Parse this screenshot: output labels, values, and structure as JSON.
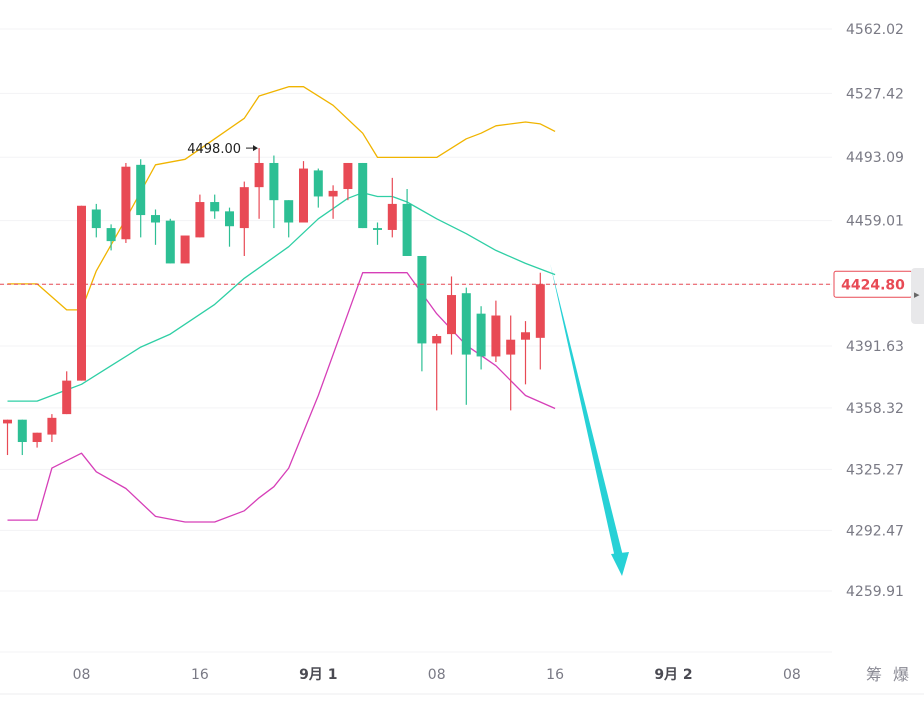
{
  "chart_data": {
    "type": "candlestick",
    "y_axis": {
      "ticks": [
        "4562.02",
        "4527.42",
        "4493.09",
        "4459.01",
        "4424.80",
        "4391.63",
        "4358.32",
        "4325.27",
        "4292.47",
        "4259.91"
      ],
      "ylim": [
        4240,
        4580
      ],
      "position": "right"
    },
    "x_axis": {
      "ticks": [
        {
          "label": "08",
          "bar": 5
        },
        {
          "label": "16",
          "bar": 13
        },
        {
          "label": "9月 1",
          "bar": 21,
          "bold": true
        },
        {
          "label": "08",
          "bar": 29
        },
        {
          "label": "16",
          "bar": 37
        },
        {
          "label": "9月 2",
          "bar": 45,
          "bold": true
        },
        {
          "label": "08",
          "bar": 53
        }
      ],
      "extra_labels": [
        "筹",
        "爆"
      ]
    },
    "current_price": {
      "value": 4424.8,
      "label": "4424.80",
      "color": "#e84a55"
    },
    "annotation": {
      "text": "4498.00",
      "value": 4498.0
    },
    "colors": {
      "up": "#e84a55",
      "down": "#2dbf94",
      "upper_band": "#f0b400",
      "middle_band": "#2fcfa5",
      "lower_band": "#d63fb8",
      "arrow": "#27d1d6"
    },
    "candles": [
      {
        "o": 4350,
        "h": 4352,
        "l": 4333,
        "c": 4352
      },
      {
        "o": 4352,
        "h": 4352,
        "l": 4333,
        "c": 4340
      },
      {
        "o": 4340,
        "h": 4345,
        "l": 4337,
        "c": 4345
      },
      {
        "o": 4344,
        "h": 4355,
        "l": 4340,
        "c": 4353
      },
      {
        "o": 4355,
        "h": 4378,
        "l": 4355,
        "c": 4373
      },
      {
        "o": 4373,
        "h": 4467,
        "l": 4373,
        "c": 4467
      },
      {
        "o": 4465,
        "h": 4468,
        "l": 4450,
        "c": 4455
      },
      {
        "o": 4455,
        "h": 4457,
        "l": 4443,
        "c": 4448
      },
      {
        "o": 4449,
        "h": 4490,
        "l": 4447,
        "c": 4488
      },
      {
        "o": 4489,
        "h": 4492,
        "l": 4450,
        "c": 4462
      },
      {
        "o": 4462,
        "h": 4465,
        "l": 4446,
        "c": 4458
      },
      {
        "o": 4459,
        "h": 4460,
        "l": 4436,
        "c": 4436
      },
      {
        "o": 4436,
        "h": 4451,
        "l": 4436,
        "c": 4451
      },
      {
        "o": 4450,
        "h": 4473,
        "l": 4450,
        "c": 4469
      },
      {
        "o": 4469,
        "h": 4473,
        "l": 4460,
        "c": 4464
      },
      {
        "o": 4464,
        "h": 4466,
        "l": 4445,
        "c": 4456
      },
      {
        "o": 4455,
        "h": 4480,
        "l": 4440,
        "c": 4477
      },
      {
        "o": 4477,
        "h": 4498,
        "l": 4460,
        "c": 4490
      },
      {
        "o": 4490,
        "h": 4494,
        "l": 4455,
        "c": 4470
      },
      {
        "o": 4470,
        "h": 4470,
        "l": 4450,
        "c": 4458
      },
      {
        "o": 4458,
        "h": 4491,
        "l": 4458,
        "c": 4487
      },
      {
        "o": 4486,
        "h": 4487,
        "l": 4466,
        "c": 4472
      },
      {
        "o": 4472,
        "h": 4478,
        "l": 4460,
        "c": 4475
      },
      {
        "o": 4476,
        "h": 4490,
        "l": 4470,
        "c": 4490
      },
      {
        "o": 4490,
        "h": 4490,
        "l": 4455,
        "c": 4455
      },
      {
        "o": 4455,
        "h": 4458,
        "l": 4446,
        "c": 4454
      },
      {
        "o": 4454,
        "h": 4482,
        "l": 4450,
        "c": 4468
      },
      {
        "o": 4468,
        "h": 4476,
        "l": 4440,
        "c": 4440
      },
      {
        "o": 4440,
        "h": 4440,
        "l": 4378,
        "c": 4393
      },
      {
        "o": 4393,
        "h": 4398,
        "l": 4357,
        "c": 4397
      },
      {
        "o": 4398,
        "h": 4429,
        "l": 4387,
        "c": 4419
      },
      {
        "o": 4420,
        "h": 4423,
        "l": 4360,
        "c": 4387
      },
      {
        "o": 4409,
        "h": 4413,
        "l": 4379,
        "c": 4386
      },
      {
        "o": 4386,
        "h": 4416,
        "l": 4383,
        "c": 4408
      },
      {
        "o": 4387,
        "h": 4408,
        "l": 4357,
        "c": 4395
      },
      {
        "o": 4395,
        "h": 4405,
        "l": 4371,
        "c": 4399
      },
      {
        "o": 4396,
        "h": 4431,
        "l": 4379,
        "c": 4424.8
      }
    ],
    "bollinger": {
      "upper": [
        [
          0,
          4425
        ],
        [
          1,
          4425
        ],
        [
          2,
          4425
        ],
        [
          4,
          4411
        ],
        [
          5,
          4411
        ],
        [
          6,
          4432
        ],
        [
          8,
          4460
        ],
        [
          10,
          4489
        ],
        [
          12,
          4492
        ],
        [
          14,
          4503
        ],
        [
          16,
          4514
        ],
        [
          17,
          4526
        ],
        [
          19,
          4531
        ],
        [
          20,
          4531
        ],
        [
          22,
          4521
        ],
        [
          24,
          4506
        ],
        [
          25,
          4493
        ],
        [
          27,
          4493
        ],
        [
          29,
          4493
        ],
        [
          31,
          4503
        ],
        [
          32,
          4506
        ],
        [
          33,
          4510
        ],
        [
          35,
          4512
        ],
        [
          36,
          4511
        ],
        [
          37,
          4507
        ]
      ],
      "middle": [
        [
          0,
          4362
        ],
        [
          1,
          4362
        ],
        [
          2,
          4362
        ],
        [
          4,
          4368
        ],
        [
          5,
          4371
        ],
        [
          7,
          4381
        ],
        [
          9,
          4391
        ],
        [
          11,
          4398
        ],
        [
          14,
          4414
        ],
        [
          16,
          4428
        ],
        [
          19,
          4445
        ],
        [
          21,
          4460
        ],
        [
          23,
          4471
        ],
        [
          24,
          4474
        ],
        [
          25,
          4472
        ],
        [
          26,
          4472
        ],
        [
          27,
          4469
        ],
        [
          29,
          4460
        ],
        [
          31,
          4452
        ],
        [
          33,
          4443
        ],
        [
          35,
          4436
        ],
        [
          37,
          4430
        ]
      ],
      "lower": [
        [
          0,
          4298
        ],
        [
          1,
          4298
        ],
        [
          2,
          4298
        ],
        [
          3,
          4326
        ],
        [
          5,
          4334
        ],
        [
          6,
          4324
        ],
        [
          8,
          4315
        ],
        [
          10,
          4300
        ],
        [
          12,
          4297
        ],
        [
          14,
          4297
        ],
        [
          16,
          4303
        ],
        [
          17,
          4310
        ],
        [
          18,
          4316
        ],
        [
          19,
          4326
        ],
        [
          21,
          4365
        ],
        [
          24,
          4431
        ],
        [
          25,
          4431
        ],
        [
          27,
          4431
        ],
        [
          29,
          4409
        ],
        [
          31,
          4392
        ],
        [
          33,
          4381
        ],
        [
          35,
          4365
        ],
        [
          37,
          4358
        ]
      ]
    }
  }
}
